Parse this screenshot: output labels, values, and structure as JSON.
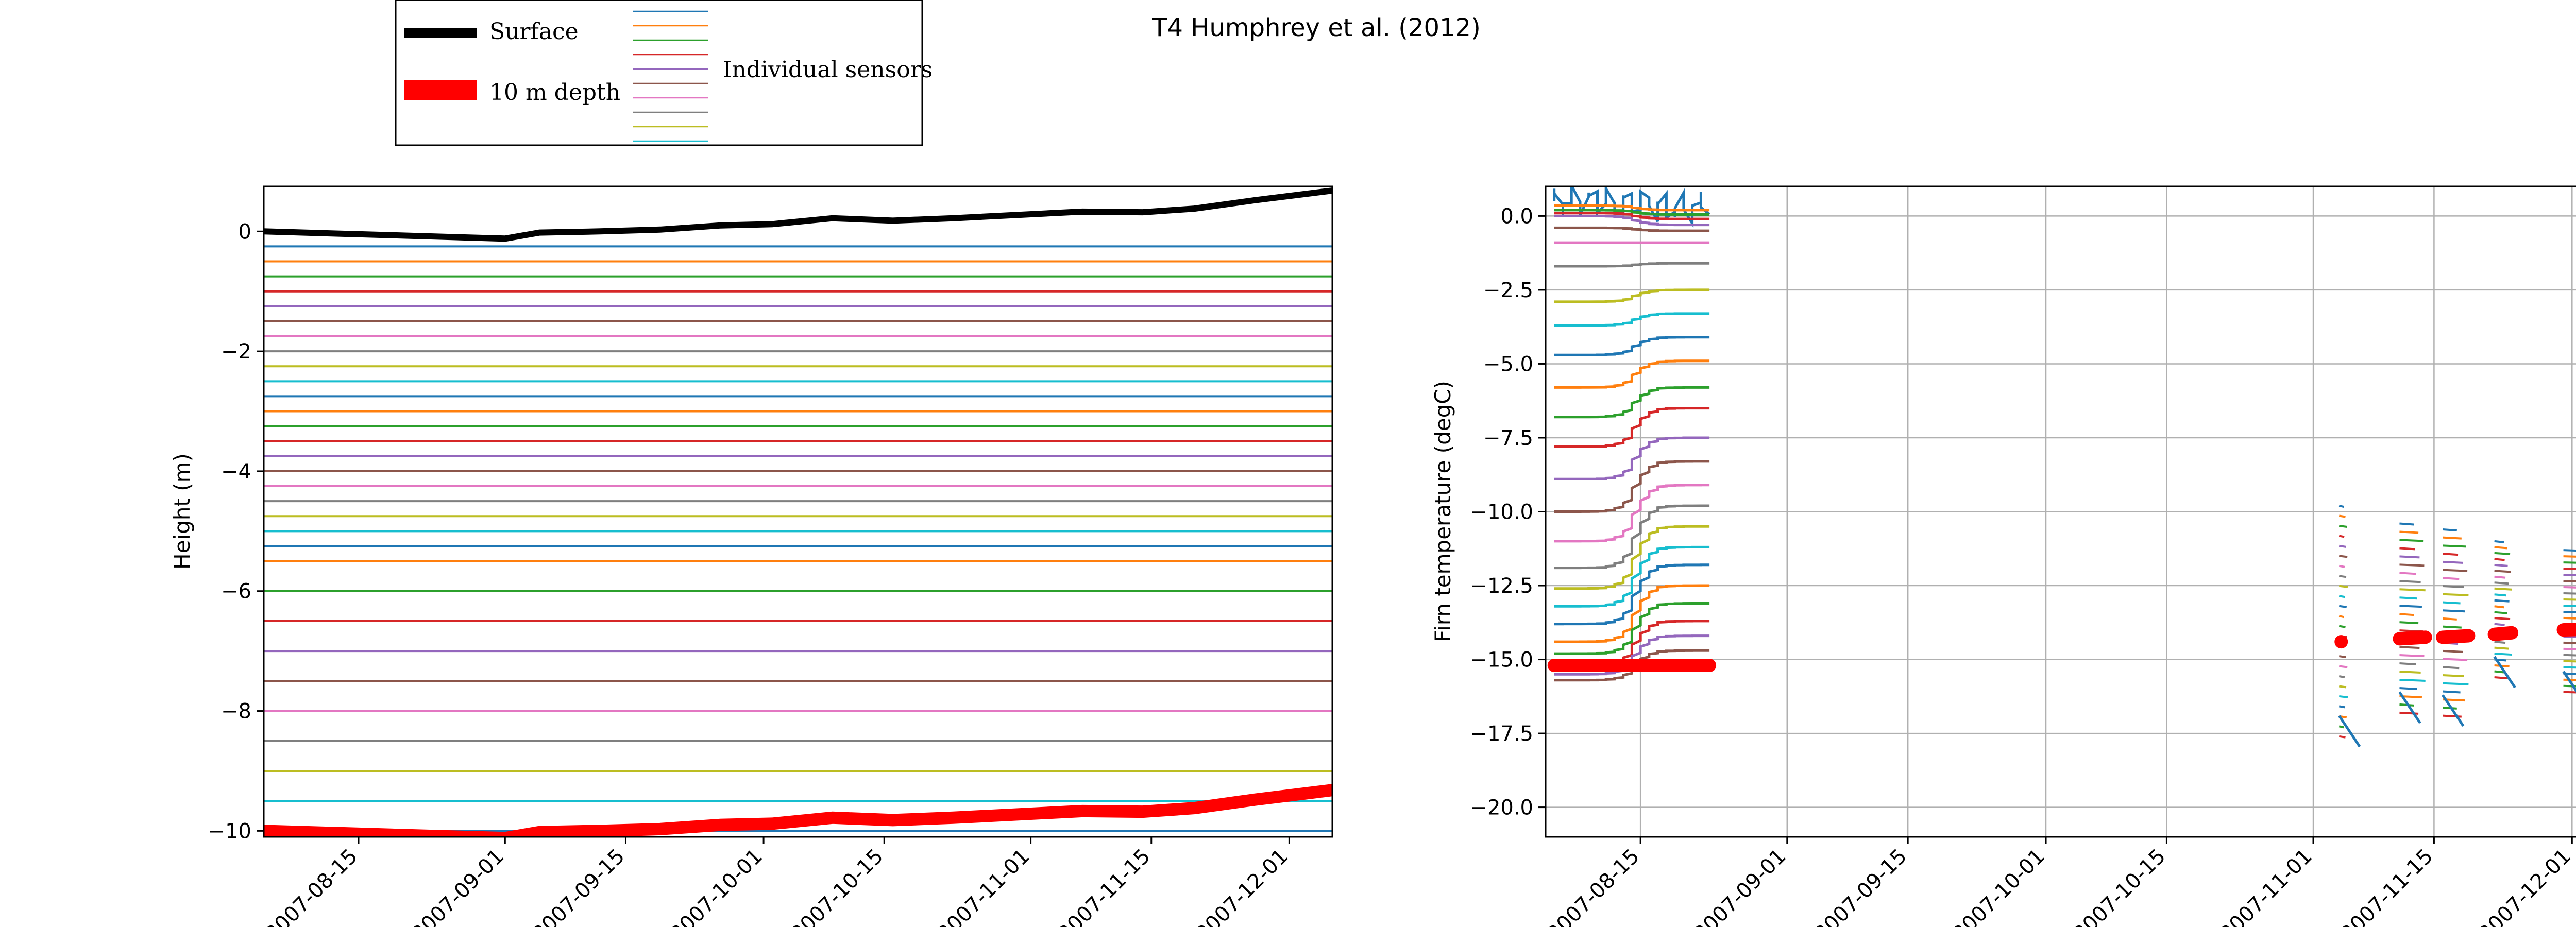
{
  "figure": {
    "title": "T4 Humphrey et al. (2012)"
  },
  "legend": {
    "entries": [
      "Surface",
      "10 m depth",
      "Individual sensors"
    ],
    "sensor_swatch_colors": [
      "#1f77b4",
      "#ff7f0e",
      "#2ca02c",
      "#d62728",
      "#9467bd",
      "#8c564b",
      "#e377c2",
      "#7f7f7f",
      "#bcbd22",
      "#17becf"
    ]
  },
  "colors": {
    "surface": "#000000",
    "depth10": "#ff0000",
    "cycle": [
      "#1f77b4",
      "#ff7f0e",
      "#2ca02c",
      "#d62728",
      "#9467bd",
      "#8c564b",
      "#e377c2",
      "#7f7f7f",
      "#bcbd22",
      "#17becf"
    ]
  },
  "chart_data": [
    {
      "type": "line",
      "ylabel": "Height (m)",
      "xlabel": "",
      "xlim": [
        "2007-08-04",
        "2007-12-06"
      ],
      "ylim": [
        -10.1,
        0.75
      ],
      "grid": false,
      "xticks": [
        "2007-08-15",
        "2007-09-01",
        "2007-09-15",
        "2007-10-01",
        "2007-10-15",
        "2007-11-01",
        "2007-11-15",
        "2007-12-01"
      ],
      "yticks": [
        -10,
        -8,
        -6,
        -4,
        -2,
        0
      ],
      "surface": {
        "x": [
          "2007-08-04",
          "2007-09-01",
          "2007-09-01",
          "2007-09-05",
          "2007-09-05",
          "2007-09-12",
          "2007-09-12",
          "2007-09-19",
          "2007-09-19",
          "2007-09-26",
          "2007-09-26",
          "2007-10-02",
          "2007-10-02",
          "2007-10-09",
          "2007-10-09",
          "2007-10-16",
          "2007-10-16",
          "2007-10-23",
          "2007-10-23",
          "2007-11-07",
          "2007-11-07",
          "2007-11-14",
          "2007-11-14",
          "2007-11-20",
          "2007-11-20",
          "2007-11-27",
          "2007-11-27",
          "2007-12-06"
        ],
        "y": [
          0.0,
          -0.12,
          -0.12,
          -0.02,
          -0.02,
          0.0,
          0.0,
          0.03,
          0.03,
          0.1,
          0.1,
          0.12,
          0.12,
          0.22,
          0.22,
          0.18,
          0.18,
          0.22,
          0.22,
          0.33,
          0.33,
          0.32,
          0.32,
          0.38,
          0.38,
          0.52,
          0.52,
          0.68
        ]
      },
      "sensor_depths": [
        0.25,
        0.5,
        0.75,
        1.0,
        1.25,
        1.5,
        1.75,
        2.0,
        2.25,
        2.5,
        2.75,
        3.0,
        3.25,
        3.5,
        3.75,
        4.0,
        4.25,
        4.5,
        4.75,
        5.0,
        5.25,
        5.5,
        6.0,
        6.5,
        7.0,
        7.5,
        8.0,
        8.5,
        9.0,
        9.5,
        10.0
      ]
    },
    {
      "type": "line",
      "ylabel": "Firn temperature (degC)",
      "xlabel": "",
      "xlim": [
        "2007-08-04",
        "2007-12-06"
      ],
      "ylim": [
        -21,
        1.0
      ],
      "grid": true,
      "xticks": [
        "2007-08-15",
        "2007-09-01",
        "2007-09-15",
        "2007-10-01",
        "2007-10-15",
        "2007-11-01",
        "2007-11-15",
        "2007-12-01"
      ],
      "yticks": [
        -20.0,
        -17.5,
        -15.0,
        -12.5,
        -10.0,
        -7.5,
        -5.0,
        -2.5,
        0.0
      ],
      "summer_period": {
        "start": "2007-08-05",
        "end": "2007-08-23",
        "shift_date": "2007-08-15"
      },
      "summer_initial_temps": [
        0.5,
        0.35,
        0.2,
        0.1,
        0.0,
        -0.4,
        -0.9,
        -1.7,
        -2.9,
        -3.7,
        -4.7,
        -5.8,
        -6.8,
        -7.8,
        -8.9,
        -10.0,
        -11.0,
        -11.9,
        -12.6,
        -13.2,
        -13.8,
        -14.4,
        -14.8,
        -15.2,
        -15.5,
        -15.7
      ],
      "summer_final_temps": [
        0.3,
        0.2,
        0.05,
        -0.1,
        -0.3,
        -0.5,
        -0.9,
        -1.6,
        -2.5,
        -3.3,
        -4.1,
        -4.9,
        -5.8,
        -6.5,
        -7.5,
        -8.3,
        -9.1,
        -9.8,
        -10.5,
        -11.2,
        -11.8,
        -12.5,
        -13.1,
        -13.7,
        -14.2,
        -14.7
      ],
      "depth10_summer": -15.2,
      "winter_bursts": [
        {
          "start": "2007-11-04",
          "end": "2007-11-05",
          "top": -9.8,
          "bottom": -17.6,
          "depth10": -14.4
        },
        {
          "start": "2007-11-11",
          "end": "2007-11-14",
          "top": -10.4,
          "bottom": -16.8,
          "depth10": -14.3
        },
        {
          "start": "2007-11-16",
          "end": "2007-11-19",
          "top": -10.6,
          "bottom": -16.9,
          "depth10": -14.25
        },
        {
          "start": "2007-11-22",
          "end": "2007-11-24",
          "top": -11.0,
          "bottom": -15.6,
          "depth10": -14.15
        },
        {
          "start": "2007-11-30",
          "end": "2007-12-06",
          "top": -11.3,
          "bottom": -16.1,
          "depth10": -14.0
        }
      ]
    }
  ]
}
